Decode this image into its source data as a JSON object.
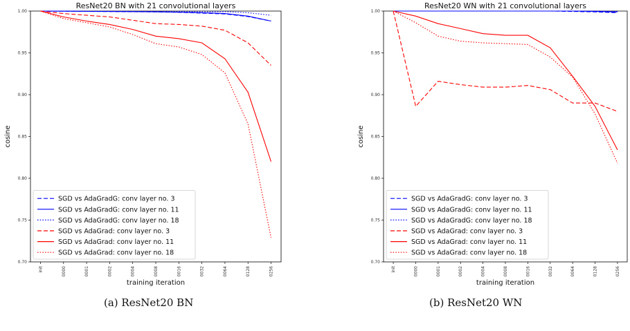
{
  "chart_data": [
    {
      "type": "line",
      "title": "ResNet20 BN with 21 convolutional layers",
      "xlabel": "training iteration",
      "ylabel": "cosine",
      "categories": [
        "init",
        "0000",
        "0001",
        "0002",
        "0004",
        "0008",
        "0016",
        "0032",
        "0064",
        "0128",
        "0256"
      ],
      "ylim": [
        0.7,
        1.0
      ],
      "yticks": [
        "0.70",
        "0.75",
        "0.80",
        "0.85",
        "0.90",
        "0.95",
        "1.00"
      ],
      "grid": false,
      "legend_position": "bottom-left",
      "caption": "(a) ResNet20 BN",
      "series": [
        {
          "name": "SGD vs AdaGradG: conv layer no. 3",
          "color": "#0000ff",
          "dash": "dashed",
          "values": [
            1.0,
            0.9998,
            0.9996,
            0.9994,
            0.9992,
            0.999,
            0.9985,
            0.9975,
            0.9965,
            0.9935,
            0.988
          ]
        },
        {
          "name": "SGD vs AdaGradG: conv layer no. 11",
          "color": "#0000ff",
          "dash": "solid",
          "values": [
            1.0,
            0.9998,
            0.9996,
            0.9995,
            0.9993,
            0.9991,
            0.9987,
            0.998,
            0.997,
            0.994,
            0.988
          ]
        },
        {
          "name": "SGD vs AdaGradG: conv layer no. 18",
          "color": "#0000ff",
          "dash": "dotted",
          "values": [
            1.0,
            0.9999,
            0.9998,
            0.9997,
            0.9996,
            0.9995,
            0.9993,
            0.9992,
            0.9993,
            0.998,
            0.995
          ]
        },
        {
          "name": "SGD vs AdaGrad: conv layer no. 3",
          "color": "#ff0000",
          "dash": "dashed",
          "values": [
            1.0,
            0.997,
            0.995,
            0.993,
            0.989,
            0.985,
            0.984,
            0.982,
            0.977,
            0.962,
            0.935
          ]
        },
        {
          "name": "SGD vs AdaGrad: conv layer no. 11",
          "color": "#ff0000",
          "dash": "solid",
          "values": [
            1.0,
            0.993,
            0.988,
            0.984,
            0.978,
            0.97,
            0.967,
            0.962,
            0.943,
            0.903,
            0.82
          ]
        },
        {
          "name": "SGD vs AdaGrad: conv layer no. 18",
          "color": "#ff0000",
          "dash": "dotted",
          "values": [
            1.0,
            0.991,
            0.986,
            0.981,
            0.972,
            0.961,
            0.957,
            0.948,
            0.926,
            0.865,
            0.729
          ]
        }
      ]
    },
    {
      "type": "line",
      "title": "ResNet20 WN with 21 convolutional layers",
      "xlabel": "training iteration",
      "ylabel": "cosine",
      "categories": [
        "init",
        "0000",
        "0001",
        "0002",
        "0004",
        "0008",
        "0016",
        "0032",
        "0064",
        "0128",
        "0256"
      ],
      "ylim": [
        0.7,
        1.0
      ],
      "yticks": [
        "0.70",
        "0.75",
        "0.80",
        "0.85",
        "0.90",
        "0.95",
        "1.00"
      ],
      "grid": false,
      "legend_position": "bottom-left",
      "caption": "(b) ResNet20 WN",
      "series": [
        {
          "name": "SGD vs AdaGradG: conv layer no. 3",
          "color": "#0000ff",
          "dash": "dashed",
          "values": [
            1.0,
            1.0,
            1.0,
            1.0,
            1.0,
            1.0,
            1.0,
            1.0,
            0.9995,
            0.999,
            0.998
          ]
        },
        {
          "name": "SGD vs AdaGradG: conv layer no. 11",
          "color": "#0000ff",
          "dash": "solid",
          "values": [
            1.0,
            1.0,
            1.0,
            1.0,
            1.0,
            1.0,
            1.0,
            1.0,
            1.0,
            0.9995,
            0.999
          ]
        },
        {
          "name": "SGD vs AdaGradG: conv layer no. 18",
          "color": "#0000ff",
          "dash": "dotted",
          "values": [
            1.0,
            1.0,
            1.0,
            1.0,
            1.0,
            1.0,
            1.0,
            1.0,
            1.0,
            1.0,
            0.9995
          ]
        },
        {
          "name": "SGD vs AdaGrad: conv layer no. 3",
          "color": "#ff0000",
          "dash": "dashed",
          "values": [
            1.0,
            0.886,
            0.916,
            0.912,
            0.909,
            0.909,
            0.911,
            0.906,
            0.89,
            0.89,
            0.88
          ]
        },
        {
          "name": "SGD vs AdaGrad: conv layer no. 11",
          "color": "#ff0000",
          "dash": "solid",
          "values": [
            1.0,
            0.994,
            0.985,
            0.979,
            0.973,
            0.971,
            0.971,
            0.956,
            0.922,
            0.886,
            0.834
          ]
        },
        {
          "name": "SGD vs AdaGrad: conv layer no. 18",
          "color": "#ff0000",
          "dash": "dotted",
          "values": [
            1.0,
            0.986,
            0.97,
            0.964,
            0.962,
            0.961,
            0.96,
            0.945,
            0.921,
            0.877,
            0.818
          ]
        }
      ]
    }
  ]
}
